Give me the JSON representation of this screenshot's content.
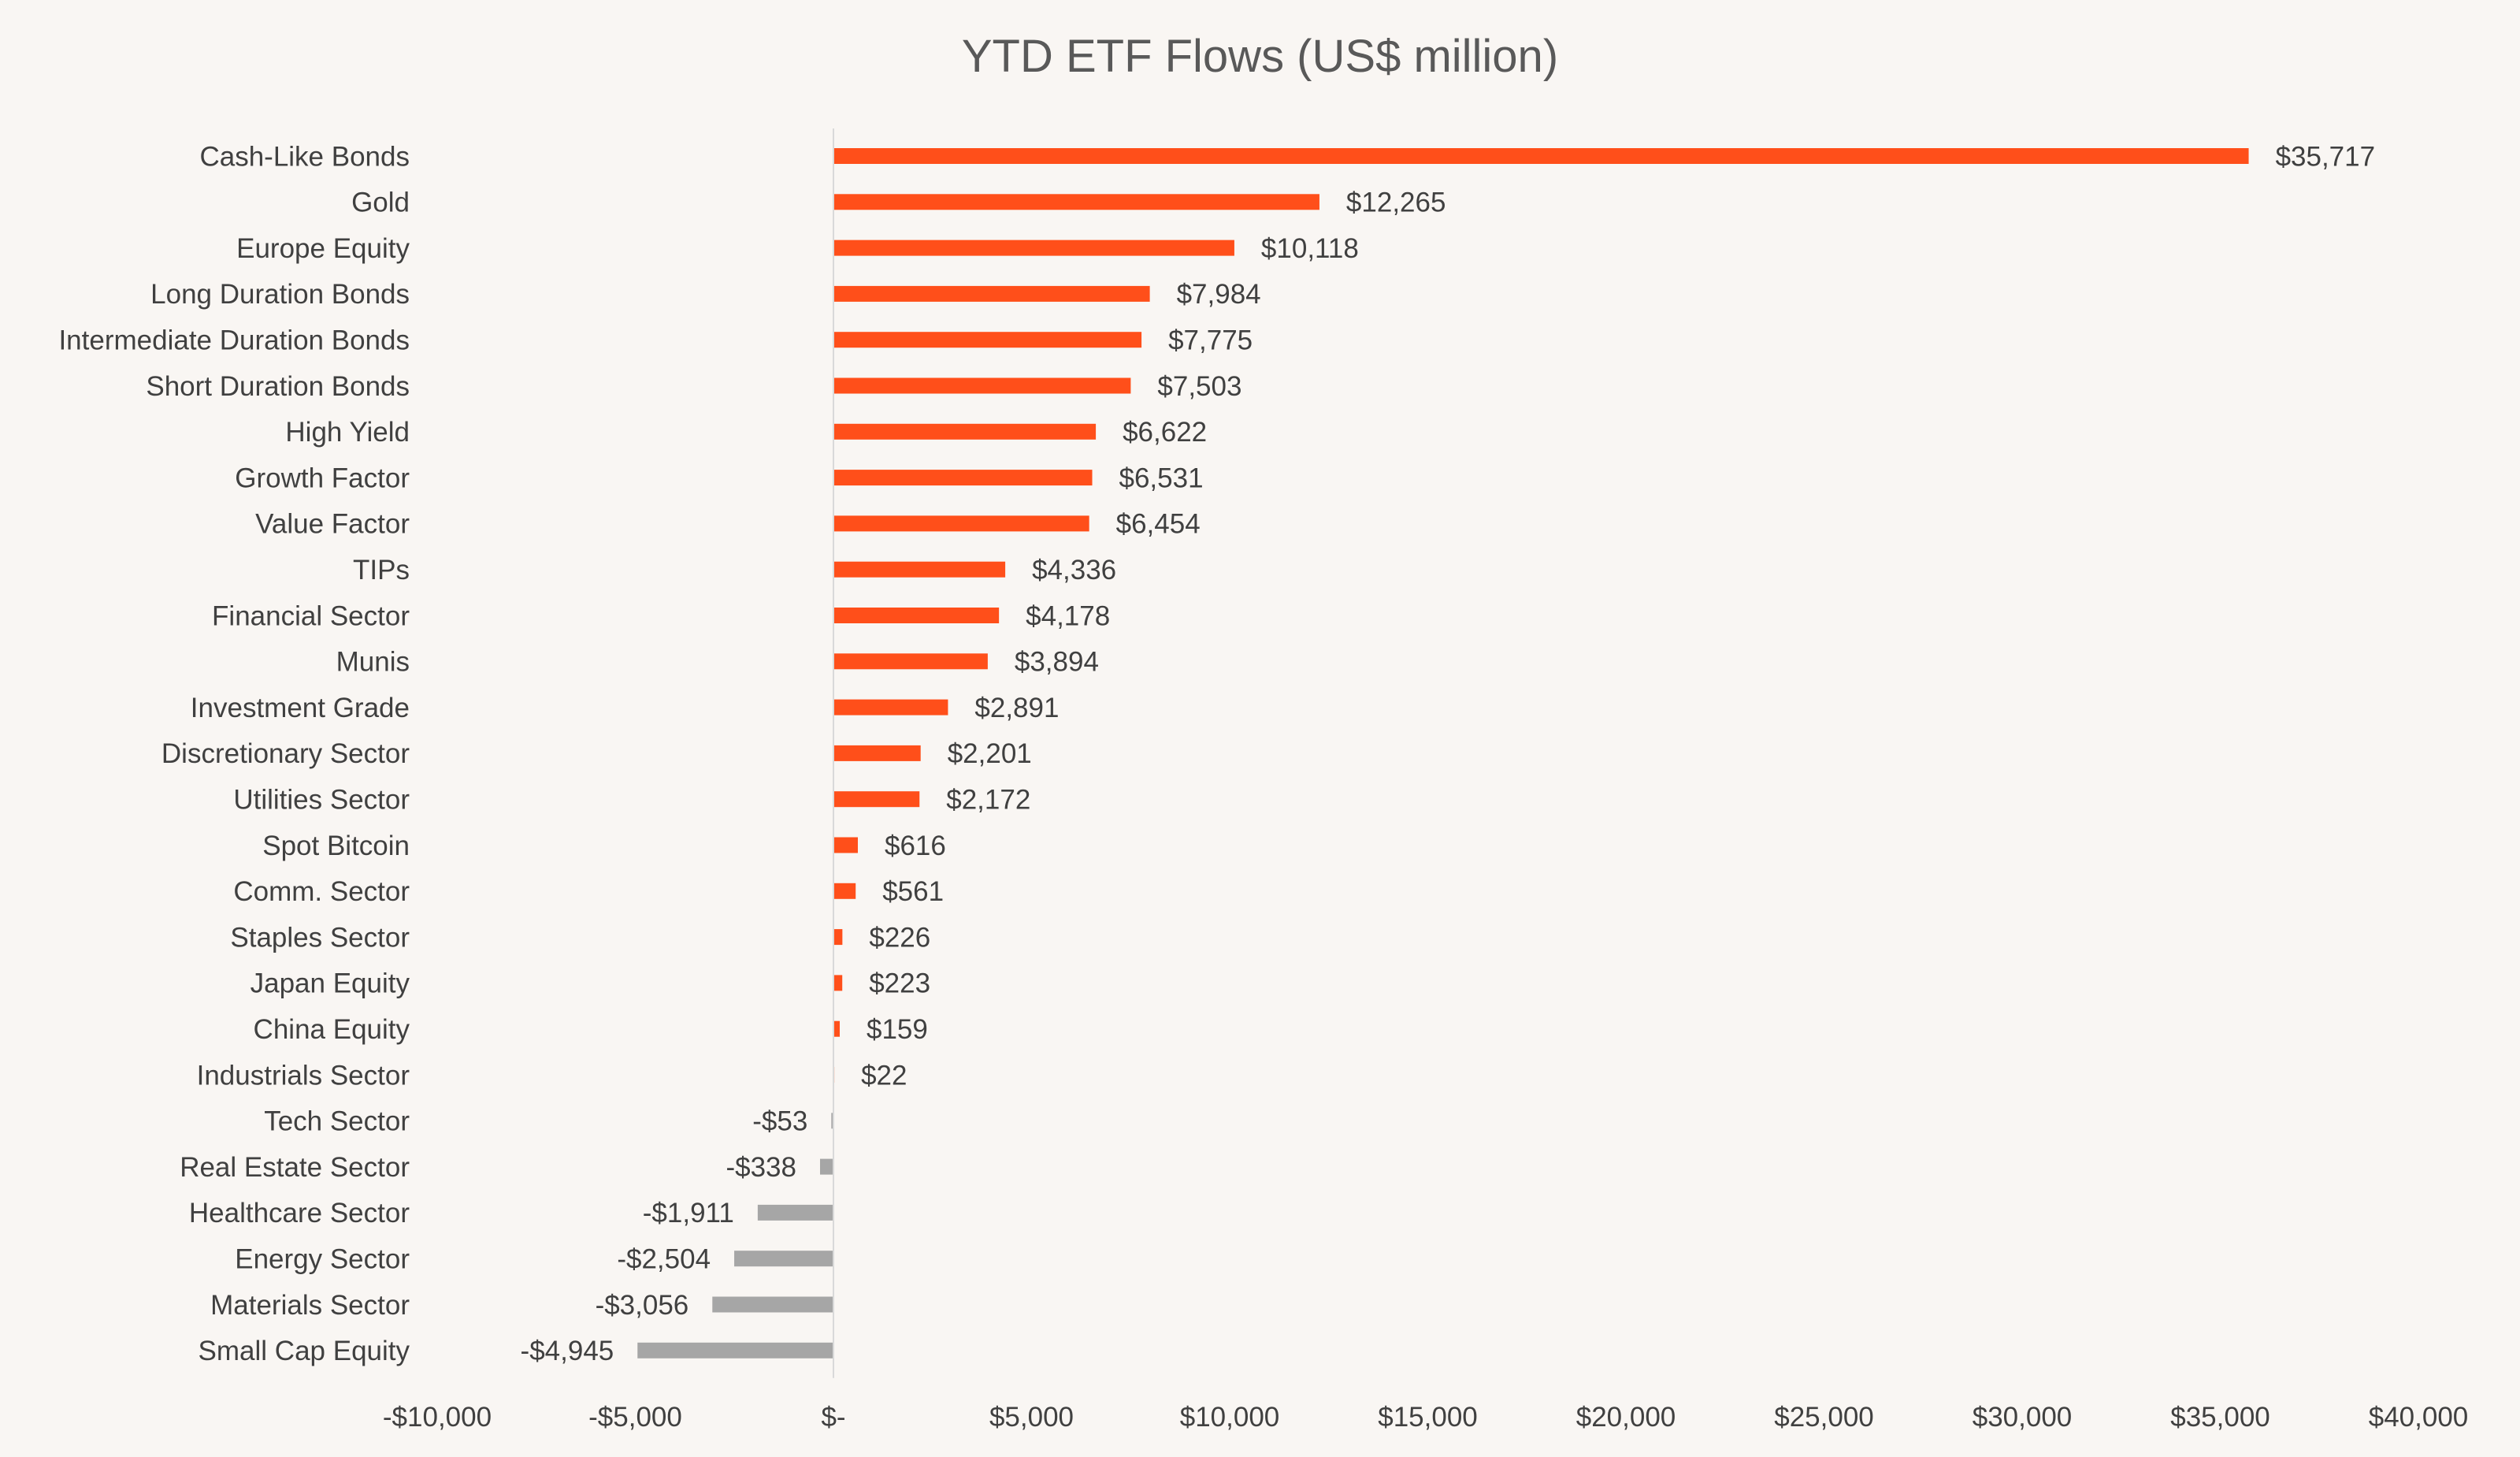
{
  "chart_data": {
    "type": "bar",
    "orientation": "horizontal",
    "title": "YTD ETF Flows (US$ million)",
    "xlabel": "",
    "ylabel": "",
    "xlim": [
      -10000,
      40000
    ],
    "x_ticks": [
      -10000,
      -5000,
      0,
      5000,
      10000,
      15000,
      20000,
      25000,
      30000,
      35000,
      40000
    ],
    "x_tick_labels": [
      "-$10,000",
      "-$5,000",
      "$-",
      "$5,000",
      "$10,000",
      "$15,000",
      "$20,000",
      "$25,000",
      "$30,000",
      "$35,000",
      "$40,000"
    ],
    "grid": false,
    "legend": "none",
    "colors": {
      "positive": "#ff4f1a",
      "negative": "#a6a6a6",
      "axis": "#d9d9d9",
      "text": "#404040",
      "title": "#595959",
      "background": "#f9f6f3"
    },
    "categories": [
      "Cash-Like Bonds",
      "Gold",
      "Europe Equity",
      "Long Duration Bonds",
      "Intermediate Duration Bonds",
      "Short Duration Bonds ",
      "High Yield",
      "Growth Factor",
      "Value Factor ",
      "TIPs",
      "Financial Sector",
      "Munis",
      "Investment Grade ",
      "Discretionary Sector",
      "Utilities Sector ",
      "Spot Bitcoin",
      "Comm. Sector",
      "Staples Sector",
      "Japan Equity",
      "China Equity",
      "Industrials Sector",
      "Tech Sector",
      "Real Estate Sector ",
      "Healthcare Sector",
      "Energy Sector",
      "Materials Sector",
      "Small Cap Equity"
    ],
    "values": [
      35717,
      12265,
      10118,
      7984,
      7775,
      7503,
      6622,
      6531,
      6454,
      4336,
      4178,
      3894,
      2891,
      2201,
      2172,
      616,
      561,
      226,
      223,
      159,
      22,
      -53,
      -338,
      -1911,
      -2504,
      -3056,
      -4945
    ],
    "data_labels": [
      "$35,717",
      "$12,265",
      "$10,118",
      "$7,984",
      "$7,775",
      "$7,503",
      "$6,622",
      "$6,531",
      "$6,454",
      "$4,336",
      "$4,178",
      "$3,894",
      "$2,891",
      "$2,201",
      "$2,172",
      "$616",
      "$561",
      "$226",
      "$223",
      "$159",
      "$22",
      "-$53",
      "-$338",
      "-$1,911",
      "-$2,504",
      "-$3,056",
      "-$4,945"
    ]
  }
}
